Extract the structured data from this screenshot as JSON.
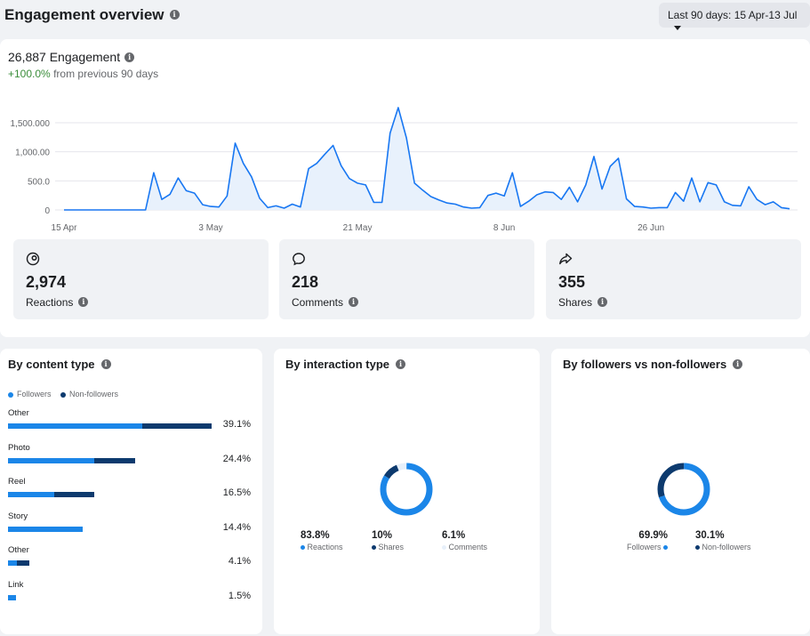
{
  "header": {
    "title": "Engagement overview",
    "date_range": "Last 90 days: 15 Apr-13 Jul"
  },
  "engagement": {
    "total": "26,887 Engagement",
    "change_pct": "+100.0%",
    "change_text": "from previous 90 days"
  },
  "chart_data": {
    "type": "area",
    "color": "#1877f2",
    "y_ticks": [
      "1,500.000",
      "1,000.00",
      "500.0",
      "0"
    ],
    "y_tick_values": [
      1500,
      1000,
      500,
      0
    ],
    "x_ticks": [
      "15 Apr",
      "3 May",
      "21 May",
      "8 Jun",
      "26 Jun"
    ],
    "x_tick_index": [
      0,
      18,
      36,
      54,
      72
    ],
    "ylim": [
      0,
      1500
    ],
    "grid": true,
    "values": [
      0,
      0,
      0,
      0,
      0,
      0,
      0,
      0,
      0,
      0,
      0,
      640,
      180,
      270,
      550,
      330,
      290,
      90,
      60,
      50,
      240,
      1150,
      800,
      570,
      200,
      40,
      70,
      30,
      100,
      50,
      710,
      800,
      960,
      1110,
      760,
      540,
      460,
      430,
      130,
      130,
      1320,
      1760,
      1240,
      460,
      340,
      230,
      170,
      120,
      100,
      50,
      30,
      40,
      250,
      290,
      240,
      640,
      60,
      150,
      260,
      310,
      300,
      180,
      390,
      140,
      430,
      920,
      360,
      750,
      890,
      190,
      60,
      50,
      30,
      40,
      40,
      300,
      150,
      550,
      140,
      470,
      430,
      140,
      80,
      70,
      400,
      180,
      90,
      140,
      40,
      20
    ]
  },
  "metrics": [
    {
      "icon": "reactions-icon",
      "value": "2,974",
      "label": "Reactions"
    },
    {
      "icon": "comments-icon",
      "value": "218",
      "label": "Comments"
    },
    {
      "icon": "shares-icon",
      "value": "355",
      "label": "Shares"
    }
  ],
  "content_type": {
    "title": "By content type",
    "legend": [
      "Followers",
      "Non-followers"
    ],
    "colors": {
      "followers": "#1b86e8",
      "non_followers": "#0d3a6e"
    },
    "rows": [
      {
        "label": "Other",
        "followers": 0.66,
        "non_followers": 0.34,
        "pct": "39.1%",
        "share": 0.391
      },
      {
        "label": "Photo",
        "followers": 0.68,
        "non_followers": 0.32,
        "pct": "24.4%",
        "share": 0.244
      },
      {
        "label": "Reel",
        "followers": 0.54,
        "non_followers": 0.46,
        "pct": "16.5%",
        "share": 0.165
      },
      {
        "label": "Story",
        "followers": 1.0,
        "non_followers": 0.0,
        "pct": "14.4%",
        "share": 0.144
      },
      {
        "label": "Other",
        "followers": 0.4,
        "non_followers": 0.6,
        "pct": "4.1%",
        "share": 0.041
      },
      {
        "label": "Link",
        "followers": 1.0,
        "non_followers": 0.0,
        "pct": "1.5%",
        "share": 0.015
      }
    ]
  },
  "interaction_type": {
    "title": "By interaction type",
    "segments": [
      {
        "value": 83.8,
        "pct": "83.8%",
        "label": "Reactions",
        "color": "#1b86e8"
      },
      {
        "value": 10,
        "pct": "10%",
        "label": "Shares",
        "color": "#0d3a6e"
      },
      {
        "value": 6.1,
        "pct": "6.1%",
        "label": "Comments",
        "color": "#e7f0fa"
      }
    ]
  },
  "followers_split": {
    "title": "By followers vs non-followers",
    "segments": [
      {
        "value": 69.9,
        "pct": "69.9%",
        "label": "Followers",
        "color": "#1b86e8"
      },
      {
        "value": 30.1,
        "pct": "30.1%",
        "label": "Non-followers",
        "color": "#0d3a6e"
      }
    ]
  }
}
